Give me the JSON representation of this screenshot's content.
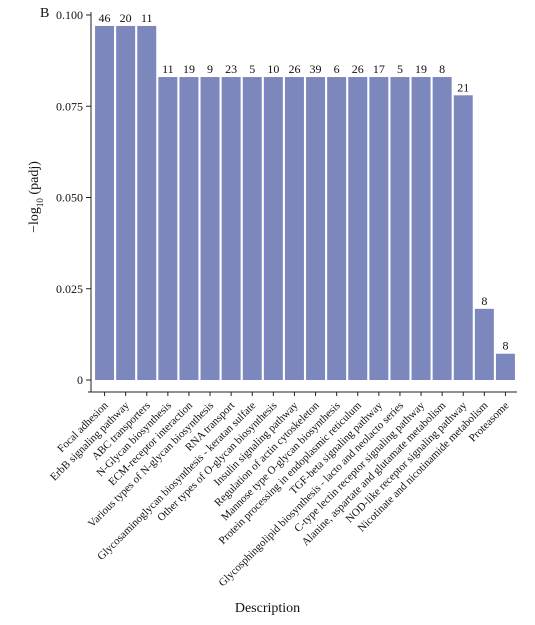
{
  "panel_label": "B",
  "chart_data": {
    "type": "bar",
    "title": "",
    "xlabel": "Description",
    "ylabel_prefix": "−log",
    "ylabel_sub": "10",
    "ylabel_suffix": " (padj)",
    "ylim": [
      0,
      0.1
    ],
    "yticks": [
      0,
      0.025,
      0.05,
      0.075,
      0.1
    ],
    "ytick_labels": [
      "0",
      "0.025",
      "0.050",
      "0.075",
      "0.100"
    ],
    "bar_color": "#7b87bd",
    "grid": false,
    "categories": [
      "Focal adhesion",
      "ErbB signaling pathway",
      "ABC transporters",
      "N-Glycan biosynthesis",
      "ECM-receptor interaction",
      "Various types of N-glycan biosynthesis",
      "RNA transport",
      "Glycosaminoglycan biosynthesis - keratan sulfate",
      "Other types of O-glycan biosynthesis",
      "Insulin signaling pathway",
      "Regulation of actin cytoskeleton",
      "Mannose type O-glycan biosynthesis",
      "Protein processing in endoplasmic reticulum",
      "TGF-beta signaling pathway",
      "Glycosphingolipid biosynthesis - lacto and neolacto series",
      "C-type lectin receptor signaling pathway",
      "Alanine, aspartate and glutamate metabolism",
      "NOD-like receptor signaling pathway",
      "Nicotinate and nicotinamide metabolism",
      "Proteasome"
    ],
    "values": [
      0.097,
      0.097,
      0.097,
      0.083,
      0.083,
      0.083,
      0.083,
      0.083,
      0.083,
      0.083,
      0.083,
      0.083,
      0.083,
      0.083,
      0.083,
      0.083,
      0.083,
      0.078,
      0.0195,
      0.0072
    ],
    "bar_labels": [
      "46",
      "20",
      "11",
      "11",
      "19",
      "9",
      "23",
      "5",
      "10",
      "26",
      "39",
      "6",
      "26",
      "17",
      "5",
      "19",
      "8",
      "21",
      "8",
      "8"
    ]
  }
}
